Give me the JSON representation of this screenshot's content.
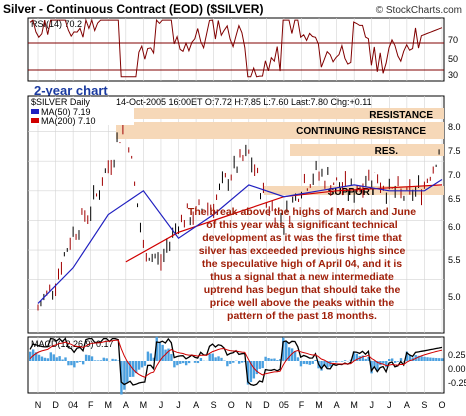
{
  "header": {
    "title": "Silver - Continuous Contract (EOD) ($SILVER)",
    "watermark": "© StockCharts.com"
  },
  "annotation_2yr": "2-year chart",
  "rsi_panel": {
    "label": "RSI(14) 70.2",
    "ticks": [
      "70",
      "50",
      "30"
    ]
  },
  "price_panel": {
    "symbol": "$SILVER Daily",
    "quote": "14-Oct-2005 16:00ET O:7.72 H:7.85 L:7.60 Last:7.80 Chg:+0.11",
    "ma50_label": "MA(50) 7.19",
    "ma200_label": "MA(200) 7.10",
    "resistance_label": "RESISTANCE",
    "continuing_label": "CONTINUING RESISTANCE",
    "res_label": "RES.",
    "support_label": "SUPPORT",
    "ticks": [
      "8.0",
      "7.5",
      "7.0",
      "6.5",
      "6.0",
      "5.5",
      "5.0"
    ],
    "commentary": [
      "The break above the highs of March and June",
      "of this year was a significant technical",
      "development as it was the first time that",
      "silver has exceeded previous highs since",
      "the speculative high of April 04, and it is",
      "thus a signal that a new intermediate",
      "uptrend has begun that should take the",
      "price well above the peaks within the",
      "pattern of the past 18 months."
    ]
  },
  "macd_panel": {
    "label": "MACD(12,26,9) 0.17",
    "ticks": [
      "0.25",
      "0.00",
      "-0.25"
    ]
  },
  "x_axis": {
    "months": [
      "N",
      "D",
      "04",
      "F",
      "M",
      "A",
      "M",
      "J",
      "J",
      "A",
      "S",
      "O",
      "N",
      "D",
      "05",
      "F",
      "M",
      "A",
      "M",
      "J",
      "J",
      "A",
      "S",
      "O"
    ]
  },
  "colors": {
    "background": "#ffffff",
    "grid": "#c8c8c8",
    "price_bars": "#000000",
    "up_bars": "#a00000",
    "ma50": "#2020c0",
    "ma200": "#d00000",
    "zone": "#f6d8b8",
    "commentary": "#a0200a",
    "annotation": "#1a3aa0",
    "macd_hist": "#4aa0e0"
  },
  "chart_data": {
    "type": "line",
    "title": "Silver - Continuous Contract (EOD) ($SILVER)",
    "x_range": [
      "2003-11",
      "2005-10"
    ],
    "price": {
      "ylim": [
        4.6,
        8.6
      ],
      "series": [
        {
          "name": "$SILVER Daily",
          "x": [
            "2003-11",
            "2003-12",
            "2004-01",
            "2004-02",
            "2004-03",
            "2004-04",
            "2004-05",
            "2004-06",
            "2004-07",
            "2004-08",
            "2004-09",
            "2004-10",
            "2004-11",
            "2004-12",
            "2005-01",
            "2005-02",
            "2005-03",
            "2005-04",
            "2005-05",
            "2005-06",
            "2005-07",
            "2005-08",
            "2005-09",
            "2005-10"
          ],
          "values": [
            5.0,
            5.5,
            6.3,
            6.7,
            7.4,
            8.2,
            6.0,
            5.8,
            6.5,
            6.6,
            6.8,
            7.3,
            7.6,
            6.8,
            6.5,
            7.1,
            7.3,
            7.1,
            7.0,
            7.3,
            7.0,
            6.9,
            7.1,
            7.8
          ]
        },
        {
          "name": "MA(50) 7.19",
          "x": [
            "2003-11",
            "2004-01",
            "2004-03",
            "2004-05",
            "2004-07",
            "2004-09",
            "2004-11",
            "2005-01",
            "2005-03",
            "2005-05",
            "2005-07",
            "2005-09",
            "2005-10"
          ],
          "values": [
            5.1,
            5.7,
            6.6,
            7.0,
            6.2,
            6.6,
            7.1,
            6.9,
            7.0,
            7.1,
            7.0,
            7.0,
            7.19
          ]
        },
        {
          "name": "MA(200) 7.10",
          "x": [
            "2004-04",
            "2004-07",
            "2004-10",
            "2005-01",
            "2005-04",
            "2005-07",
            "2005-10"
          ],
          "values": [
            5.8,
            6.3,
            6.6,
            6.9,
            7.0,
            7.05,
            7.1
          ]
        }
      ],
      "zones": [
        {
          "label": "RESISTANCE",
          "from": 8.25,
          "to": 8.45
        },
        {
          "label": "CONTINUING RESISTANCE",
          "from": 7.55,
          "to": 8.15
        },
        {
          "label": "RES.",
          "from": 7.4,
          "to": 7.55
        },
        {
          "label": "SUPPORT",
          "from": 6.75,
          "to": 6.9
        }
      ]
    },
    "rsi": {
      "ylim": [
        20,
        80
      ],
      "last": 70.2,
      "guides": [
        70,
        50,
        30
      ]
    },
    "macd": {
      "ylim": [
        -0.4,
        0.3
      ],
      "last": 0.17
    }
  }
}
